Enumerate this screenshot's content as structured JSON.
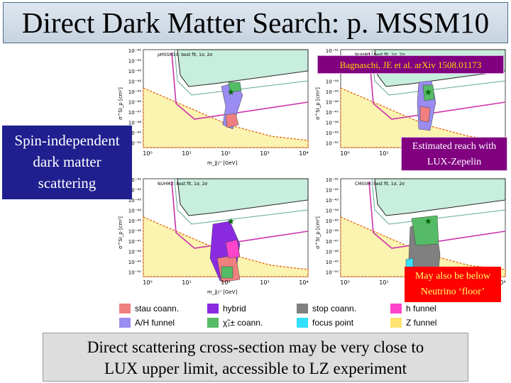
{
  "slide": {
    "title": "Direct Dark Matter Search: p. MSSM10",
    "citation": "Bagnaschi, JE et al. arXiv 1508.01173",
    "callout_si": [
      "Spin-independent",
      "dark matter",
      "scattering"
    ],
    "callout_lz": [
      "Estimated reach with",
      "LUX-Zepelin"
    ],
    "callout_neutrino": [
      "May also be below",
      "Neutrino ‘floor’"
    ],
    "conclusion": [
      "Direct scattering cross-section may be very close to",
      "LUX upper limit, accessible to LZ experiment"
    ]
  },
  "plots": [
    {
      "legend_text": "pMSSM10: best fit, 1σ, 2σ",
      "xlabel": "m_χ̃₁⁰ [GeV]",
      "ylabel": "σ^SI_p [cm²]",
      "xticks": [
        "10⁰",
        "10¹",
        "10²",
        "10³",
        "10⁴"
      ],
      "yticks": [
        "10⁻⁴¹",
        "10⁻⁴²",
        "10⁻⁴³",
        "10⁻⁴⁴",
        "10⁻⁴⁵",
        "10⁻⁴⁶",
        "10⁻⁴⁷",
        "10⁻⁴⁸",
        "10⁻⁴⁹",
        "10⁻⁵⁰"
      ]
    },
    {
      "legend_text": "NUHM1: best fit, 1σ, 2σ",
      "xlabel": "m_χ̃₁⁰ [GeV]",
      "ylabel": "σ^SI_p [cm²]",
      "xticks": [
        "10⁰",
        "10¹",
        "10²",
        "10³",
        "10⁴"
      ],
      "yticks": [
        "10⁻⁴¹",
        "10⁻⁴²",
        "10⁻⁴³",
        "10⁻⁴⁴",
        "10⁻⁴⁵",
        "10⁻⁴⁶",
        "10⁻⁴⁷",
        "10⁻⁴⁸",
        "10⁻⁴⁹",
        "10⁻⁵⁰"
      ]
    },
    {
      "legend_text": "NUHM2: best fit, 1σ, 2σ",
      "xlabel": "m_χ̃₁⁰ [GeV]",
      "ylabel": "σ^SI_p [cm²]",
      "xticks": [
        "10⁰",
        "10¹",
        "10²",
        "10³",
        "10⁴"
      ],
      "yticks": [
        "10⁻⁴¹",
        "10⁻⁴²",
        "10⁻⁴³",
        "10⁻⁴⁴",
        "10⁻⁴⁵",
        "10⁻⁴⁶",
        "10⁻⁴⁷",
        "10⁻⁴⁸",
        "10⁻⁴⁹",
        "10⁻⁵⁰"
      ]
    },
    {
      "legend_text": "CMSSM: best fit, 1σ, 2σ",
      "xlabel": "m_χ̃₁⁰ [GeV]",
      "ylabel": "σ^SI_p [cm²]",
      "xticks": [
        "10⁰",
        "10¹",
        "10²",
        "10³",
        "10⁴"
      ],
      "yticks": [
        "10⁻⁴¹",
        "10⁻⁴²",
        "10⁻⁴³",
        "10⁻⁴⁴",
        "10⁻⁴⁵",
        "10⁻⁴⁶",
        "10⁻⁴⁷",
        "10⁻⁴⁸",
        "10⁻⁴⁹",
        "10⁻⁵⁰"
      ]
    }
  ],
  "legend": [
    {
      "label": "stau coann.",
      "color": "#f08080"
    },
    {
      "label": "hybrid",
      "color": "#8a2be2"
    },
    {
      "label": "stop coann.",
      "color": "#808080"
    },
    {
      "label": "h funnel",
      "color": "#ff44cc"
    },
    {
      "label": "A/H funnel",
      "color": "#9a8cf0"
    },
    {
      "label": "χ̃₁± coann.",
      "color": "#55bb66"
    },
    {
      "label": "focus point",
      "color": "#33e0ff"
    },
    {
      "label": "Z funnel",
      "color": "#ffe36e"
    }
  ],
  "colors": {
    "title_bg": "#cfd9e4",
    "cite_bg": "#800080",
    "cite_text": "#ffd700",
    "si_bg": "#1f1f8f",
    "neutrino_bg": "#ff0000",
    "conclusion_bg": "#dddddd"
  }
}
